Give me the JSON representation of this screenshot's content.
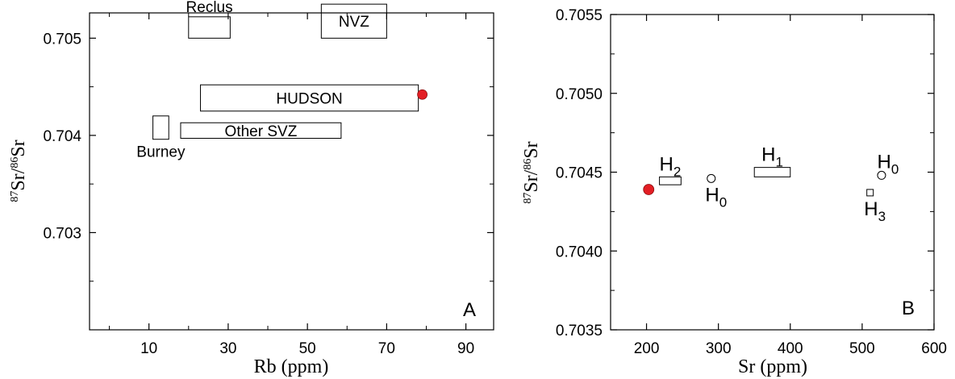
{
  "chart_data": [
    {
      "panel": "A",
      "type": "scatter",
      "xlabel": "Rb (ppm)",
      "ylabel_parts": {
        "sup1": "87",
        "base1": "Sr/",
        "sup2": "86",
        "base2": "Sr"
      },
      "xlim": [
        -5,
        97
      ],
      "ylim": [
        0.0,
        3.26
      ],
      "yaxis_value_offset": 0.702,
      "x_ticks": [
        10,
        30,
        50,
        70,
        90
      ],
      "x_ticks_minor": [
        0,
        20,
        40,
        60,
        80
      ],
      "y_ticks": [
        {
          "v": 1.0,
          "label": "0.703"
        },
        {
          "v": 2.0,
          "label": "0.704"
        },
        {
          "v": 3.0,
          "label": "0.705"
        }
      ],
      "y_ticks_minor": [
        0.5,
        1.5,
        2.5
      ],
      "fields": [
        {
          "name": "Reclus",
          "x0": 20,
          "x1": 30.5,
          "y0": 3.0,
          "y1": 3.22,
          "label_pos": "above"
        },
        {
          "name": "NVZ",
          "x0": 53.5,
          "x1": 70,
          "y0": 3.0,
          "y1": 3.35,
          "label_pos": "inside"
        },
        {
          "name": "HUDSON",
          "x0": 23,
          "x1": 78,
          "y0": 2.25,
          "y1": 2.52,
          "label_pos": "inside"
        },
        {
          "name": "Other SVZ",
          "x0": 18,
          "x1": 58.5,
          "y0": 1.97,
          "y1": 2.13,
          "label_pos": "inside"
        },
        {
          "name": "Burney",
          "x0": 11,
          "x1": 15,
          "y0": 1.96,
          "y1": 2.2,
          "label_pos": "below"
        }
      ],
      "points": [
        {
          "x": 79,
          "y": 2.42,
          "color": "#e31e24"
        }
      ],
      "panel_letter": "A"
    },
    {
      "panel": "B",
      "type": "scatter",
      "xlabel": "Sr (ppm)",
      "ylabel_parts": {
        "sup1": "87",
        "base1": "Sr/",
        "sup2": "86",
        "base2": "Sr"
      },
      "xlim": [
        150,
        600
      ],
      "ylim": [
        0.0,
        2.0
      ],
      "yaxis_value_offset": 0.7035,
      "x_ticks": [
        {
          "v": 200,
          "label": "200"
        },
        {
          "v": 300,
          "label": "300"
        },
        {
          "v": 400,
          "label": "400"
        },
        {
          "v": 500,
          "label": "500"
        },
        {
          "v": 600,
          "label": "600"
        }
      ],
      "y_ticks": [
        {
          "v": 0.0,
          "label": "0.7035"
        },
        {
          "v": 0.5,
          "label": "0.7040"
        },
        {
          "v": 1.0,
          "label": "0.7045"
        },
        {
          "v": 1.5,
          "label": "0.7050"
        },
        {
          "v": 2.0,
          "label": "0.7055"
        }
      ],
      "y_ticks_minor": [
        0.25,
        0.75,
        1.25,
        1.75
      ],
      "fields": [
        {
          "name": "H",
          "sub": "1",
          "x0": 350,
          "x1": 400,
          "y0": 0.97,
          "y1": 1.03,
          "label_pos": "above"
        },
        {
          "name": "H",
          "sub": "2",
          "x0": 218,
          "x1": 248,
          "y0": 0.92,
          "y1": 0.97,
          "label_pos": "above"
        }
      ],
      "markers": [
        {
          "name": "H",
          "sub": "0",
          "x": 290,
          "y": 0.96,
          "shape": "circle",
          "label_pos": "below"
        },
        {
          "name": "H",
          "sub": "0",
          "x": 527,
          "y": 0.98,
          "shape": "circle",
          "label_pos": "above"
        },
        {
          "name": "H",
          "sub": "3",
          "x": 511,
          "y": 0.87,
          "shape": "square",
          "label_pos": "below"
        }
      ],
      "points": [
        {
          "x": 203,
          "y": 0.89,
          "color": "#e31e24"
        }
      ],
      "panel_letter": "B"
    }
  ]
}
